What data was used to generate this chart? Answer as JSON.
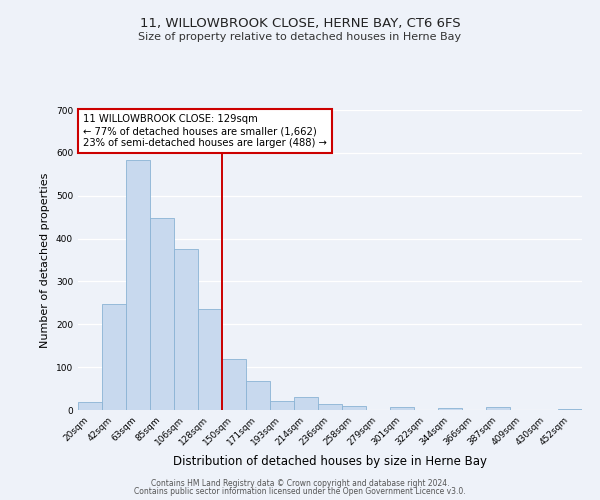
{
  "title": "11, WILLOWBROOK CLOSE, HERNE BAY, CT6 6FS",
  "subtitle": "Size of property relative to detached houses in Herne Bay",
  "xlabel": "Distribution of detached houses by size in Herne Bay",
  "ylabel": "Number of detached properties",
  "bin_labels": [
    "20sqm",
    "42sqm",
    "63sqm",
    "85sqm",
    "106sqm",
    "128sqm",
    "150sqm",
    "171sqm",
    "193sqm",
    "214sqm",
    "236sqm",
    "258sqm",
    "279sqm",
    "301sqm",
    "322sqm",
    "344sqm",
    "366sqm",
    "387sqm",
    "409sqm",
    "430sqm",
    "452sqm"
  ],
  "bar_values": [
    18,
    248,
    583,
    449,
    375,
    236,
    120,
    67,
    22,
    30,
    13,
    10,
    0,
    8,
    0,
    5,
    0,
    6,
    0,
    0,
    3
  ],
  "bar_color": "#c8d9ee",
  "bar_edge_color": "#8ab3d4",
  "vline_index": 5,
  "annotation_line1": "11 WILLOWBROOK CLOSE: 129sqm",
  "annotation_line2": "← 77% of detached houses are smaller (1,662)",
  "annotation_line3": "23% of semi-detached houses are larger (488) →",
  "annotation_box_color": "#ffffff",
  "annotation_box_edge": "#cc0000",
  "vline_color": "#cc0000",
  "ylim": [
    0,
    700
  ],
  "yticks": [
    0,
    100,
    200,
    300,
    400,
    500,
    600,
    700
  ],
  "footer_line1": "Contains HM Land Registry data © Crown copyright and database right 2024.",
  "footer_line2": "Contains public sector information licensed under the Open Government Licence v3.0.",
  "background_color": "#eef2f9",
  "plot_bg_color": "#eef2f9",
  "title_fontsize": 9.5,
  "subtitle_fontsize": 8,
  "ylabel_fontsize": 8,
  "xlabel_fontsize": 8.5,
  "tick_fontsize": 6.5,
  "footer_fontsize": 5.5,
  "annot_fontsize": 7.2
}
